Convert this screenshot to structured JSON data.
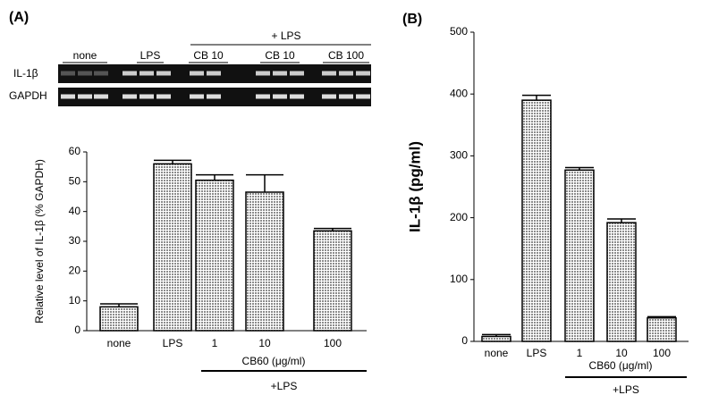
{
  "panel_labels": [
    "(A)",
    "(B)"
  ],
  "gel": {
    "treatment": "+ LPS",
    "lanes": [
      "none",
      "LPS",
      "CB 10",
      "CB 10",
      "CB 100"
    ],
    "rows": [
      "IL-1β",
      "GAPDH"
    ]
  },
  "chart_data": [
    {
      "type": "bar",
      "ylabel": "Relative level of IL-1β (% GAPDH)",
      "categories": [
        "none",
        "LPS",
        "1",
        "10",
        "100"
      ],
      "values": [
        8,
        56,
        50.5,
        46.5,
        33.5
      ],
      "errors": [
        1,
        1.2,
        1.8,
        5.8,
        0.8
      ],
      "color": "#8c8c8c",
      "ylim": [
        0,
        60
      ],
      "yticks": [
        0,
        10,
        20,
        30,
        40,
        50,
        60
      ],
      "group_label": "CB60 (μg/ml)",
      "group_sublabel": "+LPS"
    },
    {
      "type": "bar",
      "ylabel": "IL-1β (pg/ml)",
      "categories": [
        "none",
        "LPS",
        "1",
        "10",
        "100"
      ],
      "values": [
        8,
        390,
        277,
        192,
        38
      ],
      "errors": [
        3,
        8,
        4,
        6,
        2
      ],
      "color": "#8c8c8c",
      "ylim": [
        0,
        500
      ],
      "yticks": [
        0,
        100,
        200,
        300,
        400,
        500
      ],
      "group_label": "CB60 (μg/ml)",
      "group_sublabel": "+LPS"
    }
  ]
}
